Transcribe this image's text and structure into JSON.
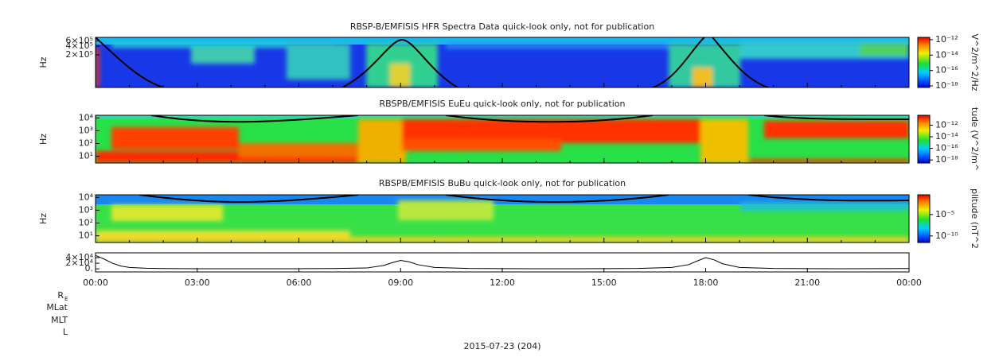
{
  "chart_data": [
    {
      "type": "spectrogram",
      "title": "RBSP-B/EMFISIS  HFR Spectra Data quick-look only, not for publication",
      "ylabel": "Hz",
      "ylog": true,
      "ylim": [
        15000,
        800000
      ],
      "yticks": [
        {
          "value": 200000,
          "label": "2×10⁵"
        },
        {
          "value": 400000,
          "label": "4×10⁵"
        },
        {
          "value": 600000,
          "label": "6×10⁵"
        }
      ],
      "colorbar": {
        "label": "V^2/m^2/Hz",
        "log": true,
        "clim": [
          6.3e-19,
          2e-12
        ],
        "ticks": [
          {
            "value": 1e-18,
            "label": "10⁻¹⁸"
          },
          {
            "value": 1e-16,
            "label": "10⁻¹⁶"
          },
          {
            "value": 1e-14,
            "label": "10⁻¹⁴"
          },
          {
            "value": 1e-12,
            "label": "10⁻¹²"
          }
        ]
      }
    },
    {
      "type": "spectrogram",
      "title": "RBSPB/EMFISIS  EuEu quick-look only, not for publication",
      "ylabel": "Hz",
      "ylog": true,
      "ylim": [
        3,
        16000
      ],
      "yticks": [
        {
          "value": 10,
          "label": "10¹"
        },
        {
          "value": 100,
          "label": "10²"
        },
        {
          "value": 1000,
          "label": "10³"
        },
        {
          "value": 10000,
          "label": "10⁴"
        }
      ],
      "colorbar": {
        "label": "tude (V^2/m^",
        "log": true,
        "clim": [
          3e-19,
          5e-11
        ],
        "ticks": [
          {
            "value": 1e-18,
            "label": "10⁻¹⁸"
          },
          {
            "value": 1e-16,
            "label": "10⁻¹⁶"
          },
          {
            "value": 1e-14,
            "label": "10⁻¹⁴"
          },
          {
            "value": 1e-12,
            "label": "10⁻¹²"
          }
        ]
      }
    },
    {
      "type": "spectrogram",
      "title": "RBSPB/EMFISIS  BuBu quick-look only, not for publication",
      "ylabel": "Hz",
      "ylog": true,
      "ylim": [
        3,
        16000
      ],
      "yticks": [
        {
          "value": 10,
          "label": "10¹"
        },
        {
          "value": 100,
          "label": "10²"
        },
        {
          "value": 1000,
          "label": "10³"
        },
        {
          "value": 10000,
          "label": "10⁴"
        }
      ],
      "colorbar": {
        "label": "plitude (nT^2",
        "log": true,
        "clim": [
          3e-12,
          0.4
        ],
        "ticks": [
          {
            "value": 1e-10,
            "label": "10⁻¹⁰"
          },
          {
            "value": 1e-05,
            "label": "10⁻⁵"
          }
        ]
      }
    },
    {
      "type": "line",
      "color": "#000000",
      "xlim": [
        0,
        24
      ],
      "ylim": [
        -11000,
        57000
      ],
      "yticks": [
        {
          "value": 0,
          "label": "0."
        },
        {
          "value": 20000,
          "label": "2×10⁴"
        },
        {
          "value": 40000,
          "label": "4×10⁴"
        }
      ],
      "xticks": [
        {
          "value": 0,
          "label": "00:00"
        },
        {
          "value": 3,
          "label": "03:00"
        },
        {
          "value": 6,
          "label": "06:00"
        },
        {
          "value": 9,
          "label": "09:00"
        },
        {
          "value": 12,
          "label": "12:00"
        },
        {
          "value": 15,
          "label": "15:00"
        },
        {
          "value": 18,
          "label": "18:00"
        },
        {
          "value": 21,
          "label": "21:00"
        },
        {
          "value": 24,
          "label": "00:00"
        }
      ],
      "x": [
        0,
        0.25,
        0.5,
        0.75,
        1,
        1.5,
        2,
        3,
        4,
        5,
        6,
        7,
        8,
        8.5,
        8.75,
        9,
        9.25,
        9.5,
        10,
        11,
        12,
        13,
        14,
        15,
        16,
        17,
        17.5,
        17.75,
        18,
        18.25,
        18.5,
        19,
        20,
        21,
        22,
        23,
        24
      ],
      "values": [
        48000,
        35000,
        20000,
        10000,
        5000,
        2000,
        1000,
        500,
        400,
        400,
        500,
        1000,
        3000,
        12000,
        22000,
        30000,
        25000,
        15000,
        5000,
        1500,
        700,
        500,
        500,
        700,
        1500,
        5000,
        15000,
        28000,
        40000,
        32000,
        18000,
        5000,
        1500,
        700,
        500,
        700,
        1200
      ],
      "ephemeris_labels": [
        "R",
        "MLat",
        "MLT",
        "L"
      ],
      "ephemeris_subscript": "E",
      "xlabel": "2015-07-23 (204)"
    }
  ]
}
